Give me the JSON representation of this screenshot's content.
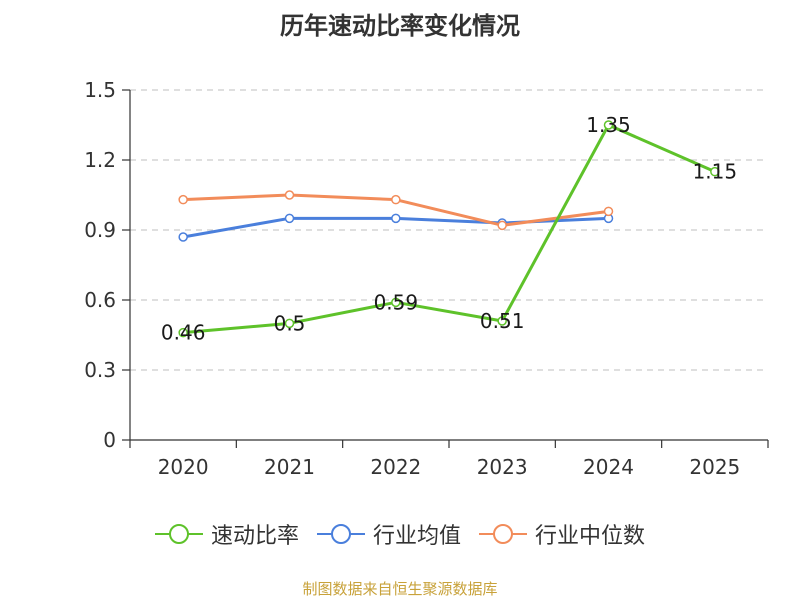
{
  "chart_data": {
    "type": "line",
    "title": "历年速动比率变化情况",
    "categories": [
      "2020",
      "2021",
      "2022",
      "2023",
      "2024",
      "2025"
    ],
    "ylim": [
      0,
      1.5
    ],
    "yticks": [
      "0",
      "0.3",
      "0.6",
      "0.9",
      "1.2",
      "1.5"
    ],
    "ytick_values": [
      0,
      0.3,
      0.6,
      0.9,
      1.2,
      1.5
    ],
    "grid": true,
    "legend_position": "bottom-center",
    "series": [
      {
        "name": "速动比率",
        "color": "#5ec22a",
        "values": [
          0.46,
          0.5,
          0.59,
          0.51,
          1.35,
          1.15
        ],
        "data_labels": [
          "0.46",
          "0.5",
          "0.59",
          "0.51",
          "1.35",
          "1.15"
        ]
      },
      {
        "name": "行业均值",
        "color": "#4a7fdc",
        "values": [
          0.87,
          0.95,
          0.95,
          0.93,
          0.95,
          null
        ]
      },
      {
        "name": "行业中位数",
        "color": "#f28c5a",
        "values": [
          1.03,
          1.05,
          1.03,
          0.92,
          0.98,
          null
        ]
      }
    ],
    "source": "制图数据来自恒生聚源数据库"
  }
}
